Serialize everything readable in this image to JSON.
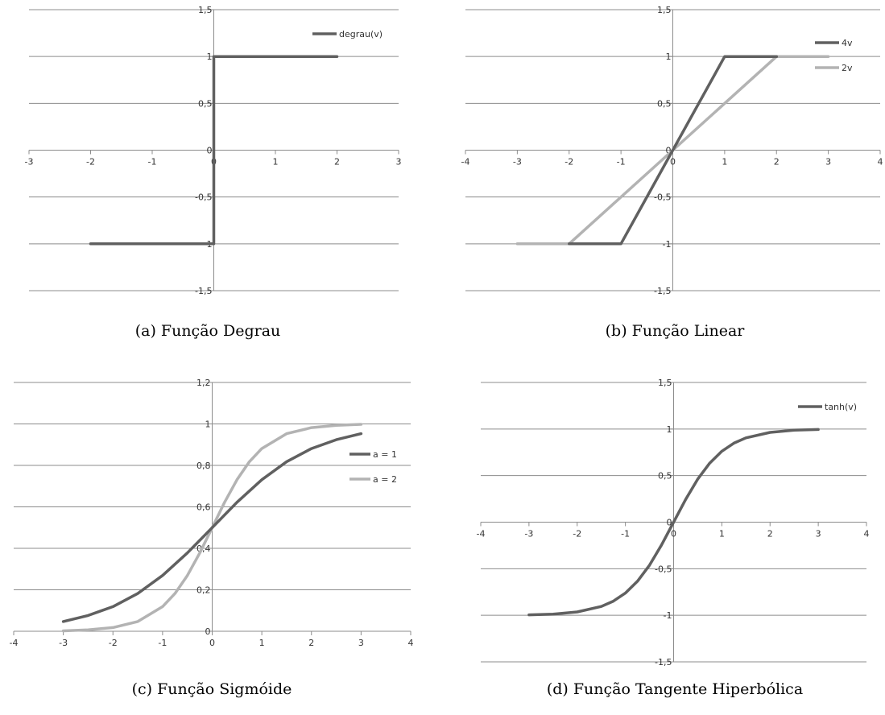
{
  "colors": {
    "dark": "#606060",
    "light": "#b3b3b3",
    "grid": "#8c8c8c",
    "axis": "#8c8c8c",
    "text": "#333333"
  },
  "chart_data": [
    {
      "id": "a",
      "type": "line",
      "caption": "(a) Função Degrau",
      "xlim": [
        -3,
        3
      ],
      "ylim": [
        -1.5,
        1.5
      ],
      "xticks": [
        -3,
        -2,
        -1,
        0,
        1,
        2,
        3
      ],
      "xtick_labels": [
        "-3",
        "-2",
        "-1",
        "0",
        "1",
        "2",
        "3"
      ],
      "yticks": [
        -1.5,
        -1,
        -0.5,
        0,
        0.5,
        1,
        1.5
      ],
      "ytick_labels": [
        "-1,5",
        "-1",
        "-0,5",
        "0",
        "0,5",
        "1",
        "1,5"
      ],
      "grid": true,
      "legend_position": "top-right",
      "series": [
        {
          "name": "degrau(v)",
          "color": "dark",
          "x": [
            -2,
            0,
            0,
            2
          ],
          "y": [
            -1,
            -1,
            1,
            1
          ]
        }
      ]
    },
    {
      "id": "b",
      "type": "line",
      "caption": "(b) Função Linear",
      "xlim": [
        -4,
        4
      ],
      "ylim": [
        -1.5,
        1.5
      ],
      "xticks": [
        -4,
        -3,
        -2,
        -1,
        0,
        1,
        2,
        3,
        4
      ],
      "xtick_labels": [
        "-4",
        "-3",
        "-2",
        "-1",
        "0",
        "1",
        "2",
        "3",
        "4"
      ],
      "yticks": [
        -1.5,
        -1,
        -0.5,
        0,
        0.5,
        1,
        1.5
      ],
      "ytick_labels": [
        "-1,5",
        "-1",
        "-0,5",
        "0",
        "0,5",
        "1",
        "1,5"
      ],
      "grid": true,
      "legend_position": "top-right",
      "series": [
        {
          "name": "4v",
          "color": "dark",
          "x": [
            -2,
            -1,
            1,
            2
          ],
          "y": [
            -1,
            -1,
            1,
            1
          ]
        },
        {
          "name": "2v",
          "color": "light",
          "x": [
            -3,
            -2,
            2,
            3
          ],
          "y": [
            -1,
            -1,
            1,
            1
          ]
        }
      ]
    },
    {
      "id": "c",
      "type": "line",
      "caption": "(c) Função Sigmóide",
      "xlim": [
        -4,
        4
      ],
      "ylim": [
        0,
        1.2
      ],
      "xticks": [
        -4,
        -3,
        -2,
        -1,
        0,
        1,
        2,
        3,
        4
      ],
      "xtick_labels": [
        "-4",
        "-3",
        "-2",
        "-1",
        "0",
        "1",
        "2",
        "3",
        "4"
      ],
      "yticks": [
        0,
        0.2,
        0.4,
        0.6,
        0.8,
        1,
        1.2
      ],
      "ytick_labels": [
        "0",
        "0,2",
        "0,4",
        "0,6",
        "0,8",
        "1",
        "1,2"
      ],
      "grid": true,
      "legend_position": "right",
      "series": [
        {
          "name": "a = 1",
          "color": "dark",
          "x": [
            -3,
            -2.5,
            -2,
            -1.5,
            -1,
            -0.5,
            0,
            0.5,
            1,
            1.5,
            2,
            2.5,
            3
          ],
          "y": [
            0.047,
            0.076,
            0.119,
            0.182,
            0.269,
            0.378,
            0.5,
            0.622,
            0.731,
            0.818,
            0.881,
            0.924,
            0.953
          ]
        },
        {
          "name": "a = 2",
          "color": "light",
          "x": [
            -3,
            -2.5,
            -2,
            -1.5,
            -1,
            -0.75,
            -0.5,
            -0.25,
            0,
            0.25,
            0.5,
            0.75,
            1,
            1.5,
            2,
            2.5,
            3
          ],
          "y": [
            0.002,
            0.007,
            0.018,
            0.047,
            0.119,
            0.182,
            0.269,
            0.378,
            0.5,
            0.622,
            0.731,
            0.818,
            0.881,
            0.953,
            0.982,
            0.993,
            0.998
          ]
        }
      ]
    },
    {
      "id": "d",
      "type": "line",
      "caption": "(d) Função Tangente Hiperbólica",
      "xlim": [
        -4,
        4
      ],
      "ylim": [
        -1.5,
        1.5
      ],
      "xticks": [
        -4,
        -3,
        -2,
        -1,
        0,
        1,
        2,
        3,
        4
      ],
      "xtick_labels": [
        "-4",
        "-3",
        "-2",
        "-1",
        "0",
        "1",
        "2",
        "3",
        "4"
      ],
      "yticks": [
        -1.5,
        -1,
        -0.5,
        0,
        0.5,
        1,
        1.5
      ],
      "ytick_labels": [
        "-1,5",
        "-1",
        "-0,5",
        "0",
        "0,5",
        "1",
        "1,5"
      ],
      "grid": true,
      "legend_position": "top-right",
      "series": [
        {
          "name": "tanh(v)",
          "color": "dark",
          "x": [
            -3,
            -2.5,
            -2,
            -1.5,
            -1.25,
            -1,
            -0.75,
            -0.5,
            -0.25,
            0,
            0.25,
            0.5,
            0.75,
            1,
            1.25,
            1.5,
            2,
            2.5,
            3
          ],
          "y": [
            -0.995,
            -0.987,
            -0.964,
            -0.905,
            -0.848,
            -0.762,
            -0.635,
            -0.462,
            -0.245,
            0,
            0.245,
            0.462,
            0.635,
            0.762,
            0.848,
            0.905,
            0.964,
            0.987,
            0.995
          ]
        }
      ]
    }
  ]
}
